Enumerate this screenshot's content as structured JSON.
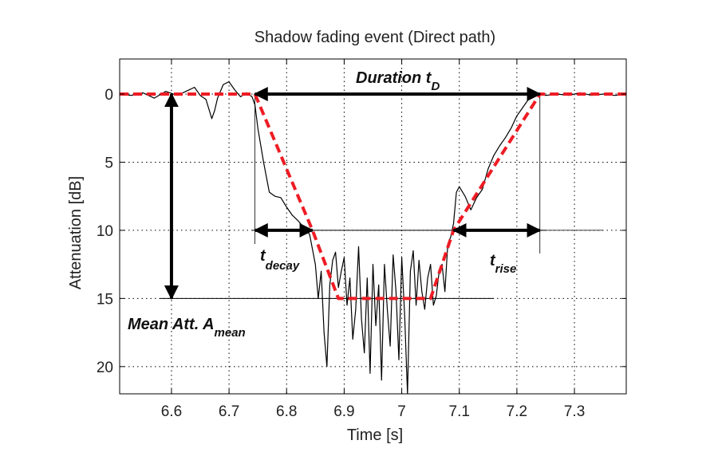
{
  "chart_data": {
    "type": "line",
    "title": "Shadow fading event (Direct path)",
    "xlabel": "Time [s]",
    "ylabel": "Attenuation [dB]",
    "xlim": [
      6.51,
      7.39
    ],
    "ylim": [
      0,
      22
    ],
    "y_axis_inverted": true,
    "grid": true,
    "x_ticks": [
      6.6,
      6.7,
      6.8,
      6.9,
      7.0,
      7.1,
      7.2,
      7.3
    ],
    "x_tick_labels": [
      "6.6",
      "6.7",
      "6.8",
      "6.9",
      "7",
      "7.1",
      "7.2",
      "7.3"
    ],
    "y_ticks": [
      0,
      5,
      10,
      15,
      20
    ],
    "y_tick_labels": [
      "0",
      "5",
      "10",
      "15",
      "20"
    ],
    "series": [
      {
        "style": "solid black line",
        "color": "#000000",
        "x": [
          6.51,
          6.53,
          6.55,
          6.57,
          6.59,
          6.61,
          6.63,
          6.64,
          6.65,
          6.66,
          6.67,
          6.675,
          6.68,
          6.69,
          6.7,
          6.71,
          6.72,
          6.73,
          6.74,
          6.745,
          6.75,
          6.76,
          6.77,
          6.78,
          6.79,
          6.8,
          6.81,
          6.82,
          6.83,
          6.84,
          6.85,
          6.855,
          6.86,
          6.865,
          6.87,
          6.875,
          6.88,
          6.885,
          6.89,
          6.895,
          6.9,
          6.905,
          6.91,
          6.915,
          6.92,
          6.925,
          6.93,
          6.935,
          6.94,
          6.945,
          6.95,
          6.955,
          6.96,
          6.965,
          6.97,
          6.975,
          6.98,
          6.985,
          6.99,
          6.995,
          7.0,
          7.005,
          7.01,
          7.015,
          7.02,
          7.025,
          7.03,
          7.035,
          7.04,
          7.045,
          7.05,
          7.055,
          7.06,
          7.065,
          7.07,
          7.075,
          7.08,
          7.085,
          7.09,
          7.095,
          7.1,
          7.11,
          7.12,
          7.13,
          7.14,
          7.15,
          7.16,
          7.17,
          7.18,
          7.19,
          7.2,
          7.21,
          7.22,
          7.23,
          7.24,
          7.25,
          7.27,
          7.29,
          7.31,
          7.33,
          7.35,
          7.37,
          7.39
        ],
        "y": [
          0.0,
          0.1,
          -0.1,
          0.3,
          -0.2,
          0.1,
          -0.3,
          -0.5,
          0.1,
          0.4,
          1.8,
          1.2,
          0.3,
          -0.7,
          -0.9,
          -0.3,
          0.2,
          -0.1,
          0.2,
          0.8,
          2.5,
          5.0,
          7.2,
          7.5,
          7.6,
          8.3,
          8.9,
          9.3,
          9.8,
          10.3,
          12.5,
          15.0,
          13.0,
          17.5,
          20.0,
          14.0,
          12.2,
          11.6,
          14.2,
          13.0,
          12.0,
          15.5,
          13.5,
          18.0,
          15.8,
          11.2,
          16.5,
          19.0,
          13.5,
          20.5,
          12.5,
          17.0,
          14.0,
          21.0,
          12.5,
          15.8,
          18.5,
          11.8,
          14.5,
          19.5,
          12.0,
          16.2,
          22.0,
          13.0,
          11.5,
          15.5,
          12.2,
          14.5,
          15.8,
          13.5,
          12.5,
          15.5,
          14.8,
          13.0,
          12.5,
          14.5,
          11.0,
          10.5,
          9.5,
          7.2,
          6.8,
          7.5,
          8.5,
          7.6,
          7.0,
          5.5,
          4.5,
          3.8,
          3.2,
          2.5,
          1.6,
          1.0,
          0.4,
          0.1,
          0.0,
          0.1,
          0.0,
          0.1,
          -0.1,
          0.1,
          0.0,
          0.1,
          0.0
        ]
      },
      {
        "style": "dashed red line",
        "color": "#ee1c24",
        "x": [
          6.51,
          6.745,
          6.845,
          6.89,
          7.05,
          7.09,
          7.24,
          7.39
        ],
        "y": [
          0,
          0,
          10,
          15,
          15,
          10,
          0,
          0
        ]
      }
    ],
    "annotations": [
      {
        "text": "Duration t",
        "subscript": "D",
        "arrow_from": [
          6.745,
          0
        ],
        "arrow_to": [
          7.24,
          0
        ]
      },
      {
        "text": "t",
        "subscript": "decay",
        "arrow_from": [
          6.745,
          10
        ],
        "arrow_to": [
          6.845,
          10
        ]
      },
      {
        "text": "t",
        "subscript": "rise",
        "arrow_from": [
          7.09,
          10
        ],
        "arrow_to": [
          7.24,
          10
        ]
      },
      {
        "text": "Mean Att. A",
        "subscript": "mean",
        "arrow_from": [
          6.6,
          0
        ],
        "arrow_to": [
          6.6,
          15
        ]
      }
    ]
  }
}
